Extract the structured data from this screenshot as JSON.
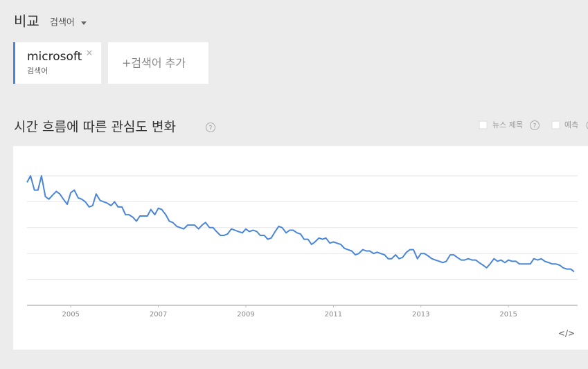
{
  "header": {
    "title": "비교",
    "dropdown": "검색어"
  },
  "terms": [
    {
      "name": "microsoft",
      "close": "×",
      "kind": "검색어"
    }
  ],
  "add_term": "+검색어 추가",
  "section": {
    "title": "시간 흐름에 따른 관심도 변화",
    "help": "?",
    "options": [
      {
        "label": "뉴스 제목",
        "help": "?"
      },
      {
        "label": "예측"
      }
    ]
  },
  "embed": "</>",
  "chart_data": {
    "type": "line",
    "color": "#4a86d8",
    "grid": true,
    "xlim": [
      2004,
      2016.58
    ],
    "xticks": [
      2005,
      2007,
      2009,
      2011,
      2013,
      2015
    ],
    "ylim": [
      0,
      100
    ],
    "yticks": [
      20,
      40,
      60,
      80,
      100
    ],
    "x": [
      2004,
      2004.08,
      2004.17,
      2004.25,
      2004.33,
      2004.42,
      2004.5,
      2004.58,
      2004.67,
      2004.75,
      2004.83,
      2004.92,
      2005,
      2005.08,
      2005.17,
      2005.25,
      2005.33,
      2005.42,
      2005.5,
      2005.58,
      2005.67,
      2005.75,
      2005.83,
      2005.92,
      2006,
      2006.08,
      2006.17,
      2006.25,
      2006.33,
      2006.42,
      2006.5,
      2006.58,
      2006.67,
      2006.75,
      2006.83,
      2006.92,
      2007,
      2007.08,
      2007.17,
      2007.25,
      2007.33,
      2007.42,
      2007.5,
      2007.58,
      2007.67,
      2007.75,
      2007.83,
      2007.92,
      2008,
      2008.08,
      2008.17,
      2008.25,
      2008.33,
      2008.42,
      2008.5,
      2008.58,
      2008.67,
      2008.75,
      2008.83,
      2008.92,
      2009,
      2009.08,
      2009.17,
      2009.25,
      2009.33,
      2009.42,
      2009.5,
      2009.58,
      2009.67,
      2009.75,
      2009.83,
      2009.92,
      2010,
      2010.08,
      2010.17,
      2010.25,
      2010.33,
      2010.42,
      2010.5,
      2010.58,
      2010.67,
      2010.75,
      2010.83,
      2010.92,
      2011,
      2011.08,
      2011.17,
      2011.25,
      2011.33,
      2011.42,
      2011.5,
      2011.58,
      2011.67,
      2011.75,
      2011.83,
      2011.92,
      2012,
      2012.08,
      2012.17,
      2012.25,
      2012.33,
      2012.42,
      2012.5,
      2012.58,
      2012.67,
      2012.75,
      2012.83,
      2012.92,
      2013,
      2013.08,
      2013.17,
      2013.25,
      2013.33,
      2013.42,
      2013.5,
      2013.58,
      2013.67,
      2013.75,
      2013.83,
      2013.92,
      2014,
      2014.08,
      2014.17,
      2014.25,
      2014.33,
      2014.42,
      2014.5,
      2014.58,
      2014.67,
      2014.75,
      2014.83,
      2014.92,
      2015,
      2015.08,
      2015.17,
      2015.25,
      2015.33,
      2015.42,
      2015.5,
      2015.58,
      2015.67,
      2015.75,
      2015.83,
      2015.92,
      2016,
      2016.08,
      2016.17,
      2016.25,
      2016.33,
      2016.42,
      2016.5
    ],
    "values": [
      95,
      100,
      89,
      89,
      100,
      84,
      82,
      85,
      88,
      86,
      82,
      78,
      87,
      89,
      83,
      82,
      80,
      76,
      77,
      86,
      81,
      80,
      79,
      77,
      80,
      76,
      76,
      70,
      70,
      68,
      65,
      69,
      69,
      69,
      74,
      70,
      75,
      74,
      70,
      65,
      64,
      61,
      60,
      59,
      62,
      62,
      62,
      59,
      62,
      64,
      60,
      60,
      57,
      54,
      54,
      55,
      59,
      58,
      57,
      56,
      59,
      57,
      58,
      57,
      54,
      54,
      51,
      52,
      57,
      61,
      60,
      56,
      58,
      58,
      56,
      55,
      51,
      51,
      47,
      49,
      52,
      51,
      52,
      48,
      49,
      48,
      47,
      44,
      43,
      42,
      39,
      40,
      43,
      42,
      42,
      40,
      41,
      40,
      39,
      36,
      36,
      39,
      36,
      37,
      41,
      43,
      43,
      36,
      40,
      40,
      38,
      36,
      35,
      34,
      33,
      34,
      39,
      39,
      37,
      35,
      35,
      36,
      35,
      35,
      33,
      31,
      29,
      32,
      36,
      34,
      35,
      33,
      35,
      34,
      34,
      32,
      32,
      32,
      32,
      36,
      35,
      36,
      34,
      33,
      32,
      32,
      31,
      29,
      28,
      28,
      26
    ]
  }
}
